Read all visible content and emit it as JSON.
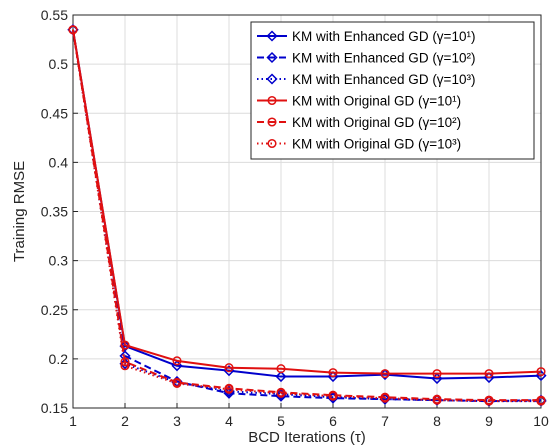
{
  "chart_data": {
    "type": "line",
    "xlabel": "BCD Iterations (τ)",
    "ylabel": "Training RMSE",
    "x": [
      1,
      2,
      3,
      4,
      5,
      6,
      7,
      8,
      9,
      10
    ],
    "xlim": [
      1,
      10
    ],
    "ylim": [
      0.15,
      0.55
    ],
    "xticks": [
      "1",
      "2",
      "3",
      "4",
      "5",
      "6",
      "7",
      "8",
      "9",
      "10"
    ],
    "yticks": [
      "0.15",
      "0.2",
      "0.25",
      "0.3",
      "0.35",
      "0.4",
      "0.45",
      "0.5",
      "0.55"
    ],
    "grid": true,
    "legend_position": "top-right",
    "series": [
      {
        "name": "KM with Enhanced GD (γ=10¹)",
        "color": "#0000CC",
        "style": "solid",
        "marker": "diamond",
        "values": [
          0.535,
          0.213,
          0.193,
          0.188,
          0.182,
          0.182,
          0.184,
          0.18,
          0.181,
          0.183
        ]
      },
      {
        "name": "KM with Enhanced GD (γ=10²)",
        "color": "#0000CC",
        "style": "dashed",
        "marker": "diamond",
        "values": [
          0.535,
          0.203,
          0.177,
          0.165,
          0.162,
          0.16,
          0.159,
          0.158,
          0.157,
          0.158
        ]
      },
      {
        "name": "KM with Enhanced GD (γ=10³)",
        "color": "#0000CC",
        "style": "dotted",
        "marker": "diamond",
        "values": [
          0.535,
          0.195,
          0.176,
          0.167,
          0.164,
          0.161,
          0.159,
          0.158,
          0.157,
          0.157
        ]
      },
      {
        "name": "KM with Original GD (γ=10¹)",
        "color": "#E01010",
        "style": "solid",
        "marker": "circle",
        "values": [
          0.535,
          0.214,
          0.198,
          0.191,
          0.19,
          0.186,
          0.185,
          0.185,
          0.185,
          0.187
        ]
      },
      {
        "name": "KM with Original GD (γ=10²)",
        "color": "#E01010",
        "style": "dashed",
        "marker": "circle",
        "values": [
          0.535,
          0.197,
          0.176,
          0.17,
          0.166,
          0.163,
          0.161,
          0.159,
          0.158,
          0.158
        ]
      },
      {
        "name": "KM with Original GD (γ=10³)",
        "color": "#E01010",
        "style": "dotted",
        "marker": "circle",
        "values": [
          0.535,
          0.193,
          0.175,
          0.169,
          0.165,
          0.162,
          0.16,
          0.158,
          0.157,
          0.157
        ]
      }
    ]
  }
}
